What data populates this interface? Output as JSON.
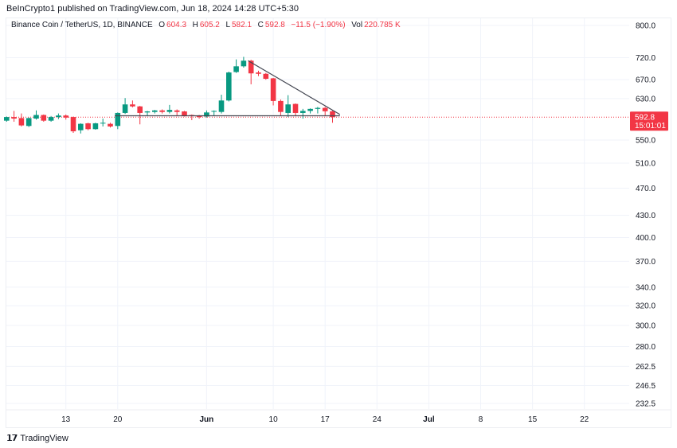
{
  "publisher_line": "BeInCrypto1 published on TradingView.com, Jun 18, 2024 14:28 UTC+5:30",
  "legend": {
    "symbol": "Binance Coin / TetherUS, 1D, BINANCE",
    "o_label": "O",
    "o": "604.3",
    "h_label": "H",
    "h": "605.2",
    "l_label": "L",
    "l": "582.1",
    "c_label": "C",
    "c": "592.8",
    "change": "−11.5 (−1.90%)",
    "vol_label": "Vol",
    "vol": "220.785 K"
  },
  "colors": {
    "up": "#089981",
    "down": "#f23645",
    "grid": "#f0f3fa",
    "trendline": "#434651"
  },
  "price_axis": {
    "ticks": [
      "800.0",
      "720.0",
      "670.0",
      "630.0",
      "550.0",
      "510.0",
      "470.0",
      "430.0",
      "400.0",
      "370.0",
      "340.0",
      "320.0",
      "300.0",
      "280.0",
      "262.5",
      "246.5",
      "232.5"
    ],
    "last_price": "592.8",
    "countdown": "15:01:01"
  },
  "time_axis": {
    "ticks": [
      {
        "label": "13",
        "day_index": 8,
        "bold": false
      },
      {
        "label": "20",
        "day_index": 15,
        "bold": false
      },
      {
        "label": "Jun",
        "day_index": 27,
        "bold": true
      },
      {
        "label": "10",
        "day_index": 36,
        "bold": false
      },
      {
        "label": "17",
        "day_index": 43,
        "bold": false
      },
      {
        "label": "24",
        "day_index": 50,
        "bold": false
      },
      {
        "label": "Jul",
        "day_index": 57,
        "bold": true
      },
      {
        "label": "8",
        "day_index": 64,
        "bold": false
      },
      {
        "label": "15",
        "day_index": 71,
        "bold": false
      },
      {
        "label": "22",
        "day_index": 78,
        "bold": false
      }
    ]
  },
  "candles": [
    [
      586,
      594,
      584,
      593
    ],
    [
      593,
      605,
      584,
      590
    ],
    [
      591,
      600,
      575,
      577
    ],
    [
      576,
      592,
      574,
      591
    ],
    [
      590,
      606,
      588,
      597
    ],
    [
      597,
      598,
      584,
      586
    ],
    [
      586,
      595,
      584,
      593
    ],
    [
      593,
      600,
      589,
      596
    ],
    [
      596,
      598,
      588,
      592
    ],
    [
      593,
      594,
      563,
      566
    ],
    [
      568,
      581,
      562,
      580
    ],
    [
      581,
      582,
      568,
      570
    ],
    [
      570,
      582,
      569,
      581
    ],
    [
      582,
      590,
      575,
      582
    ],
    [
      580,
      582,
      573,
      575
    ],
    [
      576,
      602,
      570,
      601
    ],
    [
      601,
      631,
      599,
      618
    ],
    [
      618,
      626,
      612,
      614
    ],
    [
      614,
      615,
      579,
      601
    ],
    [
      602,
      605,
      596,
      604
    ],
    [
      603,
      607,
      600,
      606
    ],
    [
      606,
      608,
      600,
      603
    ],
    [
      603,
      617,
      600,
      607
    ],
    [
      606,
      608,
      595,
      603
    ],
    [
      604,
      605,
      594,
      596
    ],
    [
      597,
      598,
      587,
      595
    ],
    [
      596,
      597,
      590,
      593
    ],
    [
      594,
      606,
      592,
      602
    ],
    [
      604,
      606,
      596,
      605
    ],
    [
      603,
      638,
      600,
      626
    ],
    [
      626,
      688,
      624,
      686
    ],
    [
      687,
      716,
      685,
      700
    ],
    [
      700,
      722,
      697,
      713
    ],
    [
      713,
      715,
      660,
      684
    ],
    [
      686,
      690,
      678,
      683
    ],
    [
      683,
      685,
      670,
      672
    ],
    [
      673,
      674,
      616,
      625
    ],
    [
      625,
      628,
      595,
      603
    ],
    [
      601,
      637,
      593,
      618
    ],
    [
      619,
      620,
      595,
      601
    ],
    [
      601,
      609,
      590,
      605
    ],
    [
      605,
      610,
      600,
      609
    ],
    [
      609,
      613,
      600,
      611
    ],
    [
      611,
      613,
      596,
      604.3
    ],
    [
      604.3,
      605.2,
      582.1,
      592.8
    ]
  ],
  "drawings": {
    "descending_trendline": {
      "from": {
        "day_index": 32.6,
        "price": 713
      },
      "to": {
        "day_index": 45,
        "price": 598
      }
    },
    "support_line": {
      "from": {
        "day_index": 14.6,
        "price": 595.5
      },
      "to": {
        "day_index": 45,
        "price": 595.5
      }
    }
  },
  "footer": {
    "logo_mark": "17",
    "brand": "TradingView"
  }
}
